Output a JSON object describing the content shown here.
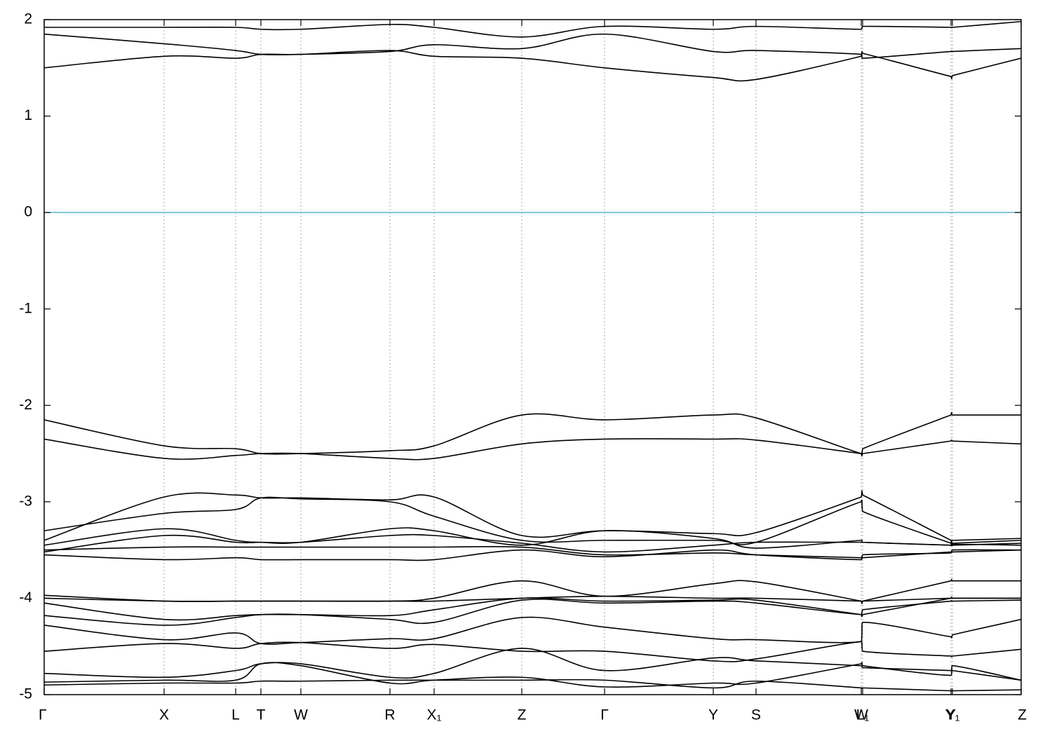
{
  "chart_data": {
    "type": "line",
    "x": [
      0,
      1.71,
      2.73,
      3.09,
      3.66,
      4.93,
      5.56,
      6.81,
      7.99,
      9.54,
      10.15,
      11.65,
      11.67,
      12.93,
      12.95,
      13.93
    ],
    "xlim": [
      0,
      13.93
    ],
    "xticks": [
      {
        "value": 0,
        "label": "Γ"
      },
      {
        "value": 1.71,
        "label": "X"
      },
      {
        "value": 2.73,
        "label": "L"
      },
      {
        "value": 3.09,
        "label": "T"
      },
      {
        "value": 3.66,
        "label": "W"
      },
      {
        "value": 4.93,
        "label": "R"
      },
      {
        "value": 5.56,
        "label": "X₁"
      },
      {
        "value": 6.81,
        "label": "Z"
      },
      {
        "value": 7.99,
        "label": "Γ"
      },
      {
        "value": 9.54,
        "label": "Y"
      },
      {
        "value": 10.15,
        "label": "S"
      },
      {
        "value": 11.65,
        "label": "W"
      },
      {
        "value": 11.67,
        "label": "L₁"
      },
      {
        "value": 12.93,
        "label": "Y"
      },
      {
        "value": 12.95,
        "label": "Y₁"
      },
      {
        "value": 13.93,
        "label": "Z"
      }
    ],
    "ylim": [
      -5,
      2
    ],
    "yticks": [
      -5,
      -4,
      -3,
      -2,
      -1,
      0,
      1,
      2
    ],
    "grid": true,
    "fermi_level": 0,
    "fermi_color": "#5ab4c8",
    "series": [
      {
        "color": "#000000",
        "values": [
          1.5,
          1.62,
          1.6,
          1.64,
          1.64,
          1.68,
          1.62,
          1.6,
          1.5,
          1.4,
          1.38,
          1.62,
          1.65,
          1.41,
          1.42,
          1.6
        ]
      },
      {
        "color": "#000000",
        "values": [
          1.85,
          1.75,
          1.68,
          1.64,
          1.64,
          1.67,
          1.74,
          1.7,
          1.85,
          1.67,
          1.68,
          1.64,
          1.6,
          1.67,
          1.67,
          1.7
        ]
      },
      {
        "color": "#000000",
        "values": [
          1.92,
          1.92,
          1.92,
          1.9,
          1.9,
          1.95,
          1.92,
          1.82,
          1.93,
          1.9,
          1.93,
          1.9,
          1.93,
          1.92,
          1.92,
          1.98
        ]
      },
      {
        "color": "#000000",
        "values": [
          -2.15,
          -2.42,
          -2.45,
          -2.5,
          -2.5,
          -2.47,
          -2.42,
          -2.1,
          -2.15,
          -2.1,
          -2.13,
          -2.5,
          -2.45,
          -2.1,
          -2.1,
          -2.1
        ]
      },
      {
        "color": "#000000",
        "values": [
          -2.35,
          -2.55,
          -2.52,
          -2.5,
          -2.5,
          -2.55,
          -2.55,
          -2.4,
          -2.35,
          -2.35,
          -2.36,
          -2.5,
          -2.5,
          -2.37,
          -2.37,
          -2.4
        ]
      },
      {
        "color": "#000000",
        "values": [
          -3.4,
          -2.95,
          -2.93,
          -2.96,
          -2.96,
          -2.98,
          -2.95,
          -3.35,
          -3.3,
          -3.33,
          -3.32,
          -2.95,
          -2.93,
          -3.4,
          -3.4,
          -3.38
        ]
      },
      {
        "color": "#000000",
        "values": [
          -3.3,
          -3.12,
          -3.08,
          -2.96,
          -2.97,
          -3.0,
          -3.15,
          -3.4,
          -3.4,
          -3.4,
          -3.42,
          -3.0,
          -3.1,
          -3.43,
          -3.43,
          -3.4
        ]
      },
      {
        "color": "#000000",
        "values": [
          -3.45,
          -3.28,
          -3.4,
          -3.42,
          -3.42,
          -3.28,
          -3.3,
          -3.45,
          -3.3,
          -3.38,
          -3.48,
          -3.4,
          -3.42,
          -3.45,
          -3.45,
          -3.43
        ]
      },
      {
        "color": "#000000",
        "values": [
          -3.52,
          -3.35,
          -3.42,
          -3.42,
          -3.42,
          -3.35,
          -3.35,
          -3.43,
          -3.52,
          -3.45,
          -3.42,
          -3.42,
          -3.42,
          -3.45,
          -3.44,
          -3.45
        ]
      },
      {
        "color": "#000000",
        "values": [
          -3.5,
          -3.47,
          -3.47,
          -3.47,
          -3.47,
          -3.47,
          -3.47,
          -3.47,
          -3.55,
          -3.53,
          -3.55,
          -3.58,
          -3.58,
          -3.52,
          -3.52,
          -3.5
        ]
      },
      {
        "color": "#000000",
        "values": [
          -3.55,
          -3.6,
          -3.58,
          -3.6,
          -3.6,
          -3.6,
          -3.6,
          -3.5,
          -3.57,
          -3.5,
          -3.55,
          -3.6,
          -3.55,
          -3.53,
          -3.5,
          -3.5
        ]
      },
      {
        "color": "#000000",
        "values": [
          -4.0,
          -4.03,
          -4.03,
          -4.03,
          -4.03,
          -4.03,
          -4.0,
          -3.82,
          -3.98,
          -3.85,
          -3.83,
          -4.03,
          -4.03,
          -3.82,
          -3.82,
          -3.82
        ]
      },
      {
        "color": "#000000",
        "values": [
          -3.97,
          -4.03,
          -4.03,
          -4.03,
          -4.03,
          -4.03,
          -4.03,
          -4.0,
          -3.98,
          -4.0,
          -4.0,
          -4.03,
          -4.03,
          -4.0,
          -4.0,
          -4.0
        ]
      },
      {
        "color": "#000000",
        "values": [
          -4.05,
          -4.22,
          -4.18,
          -4.17,
          -4.17,
          -4.18,
          -4.12,
          -4.0,
          -4.03,
          -4.02,
          -4.02,
          -4.17,
          -4.17,
          -4.0,
          -4.0,
          -4.0
        ]
      },
      {
        "color": "#000000",
        "values": [
          -4.18,
          -4.28,
          -4.2,
          -4.17,
          -4.17,
          -4.22,
          -4.25,
          -4.02,
          -4.05,
          -4.03,
          -4.05,
          -4.17,
          -4.12,
          -4.03,
          -4.03,
          -4.02
        ]
      },
      {
        "color": "#000000",
        "values": [
          -4.28,
          -4.43,
          -4.36,
          -4.47,
          -4.46,
          -4.42,
          -4.42,
          -4.2,
          -4.3,
          -4.42,
          -4.43,
          -4.45,
          -4.25,
          -4.4,
          -4.38,
          -4.22
        ]
      },
      {
        "color": "#000000",
        "values": [
          -4.55,
          -4.47,
          -4.52,
          -4.47,
          -4.46,
          -4.52,
          -4.48,
          -4.55,
          -4.55,
          -4.65,
          -4.63,
          -4.45,
          -4.55,
          -4.6,
          -4.6,
          -4.53
        ]
      },
      {
        "color": "#000000",
        "values": [
          -4.78,
          -4.82,
          -4.75,
          -4.68,
          -4.68,
          -4.82,
          -4.78,
          -4.52,
          -4.75,
          -4.62,
          -4.65,
          -4.7,
          -4.72,
          -4.75,
          -4.75,
          -4.85
        ]
      },
      {
        "color": "#000000",
        "values": [
          -4.87,
          -4.85,
          -4.85,
          -4.68,
          -4.7,
          -4.88,
          -4.85,
          -4.82,
          -4.92,
          -4.88,
          -4.88,
          -4.68,
          -4.7,
          -4.8,
          -4.7,
          -4.85
        ]
      },
      {
        "color": "#000000",
        "values": [
          -4.9,
          -4.88,
          -4.88,
          -4.86,
          -4.86,
          -4.85,
          -4.85,
          -4.85,
          -4.85,
          -4.93,
          -4.86,
          -4.93,
          -4.93,
          -4.96,
          -4.96,
          -4.95
        ]
      }
    ]
  }
}
